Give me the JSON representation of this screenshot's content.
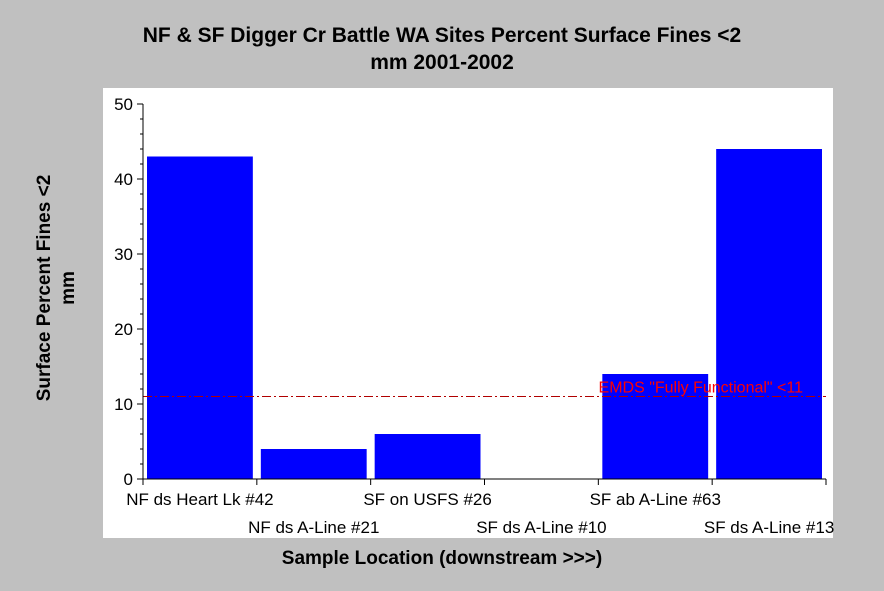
{
  "chart_data": {
    "type": "bar",
    "title_line1": "NF & SF Digger Cr Battle WA Sites Percent Surface Fines <2",
    "title_line2": "mm 2001-2002",
    "ylabel_line1": "Surface Percent Fines <2",
    "ylabel_line2": "mm",
    "xlabel": "Sample Location (downstream >>>)",
    "categories": [
      "NF ds Heart Lk #42",
      "NF ds A-Line #21",
      "SF on USFS #26",
      "SF ds A-Line #10",
      "SF ab A-Line #63",
      "SF ds A-Line #13"
    ],
    "values": [
      43,
      4,
      6,
      0,
      14,
      44
    ],
    "ylim": [
      0,
      50
    ],
    "yticks": [
      0,
      10,
      20,
      30,
      40,
      50
    ],
    "bar_color": "#0000ff",
    "reference_line": {
      "value": 11,
      "label": "EMDS \"Fully Functional\" <11",
      "color": "#ff0000"
    },
    "grid": false
  }
}
